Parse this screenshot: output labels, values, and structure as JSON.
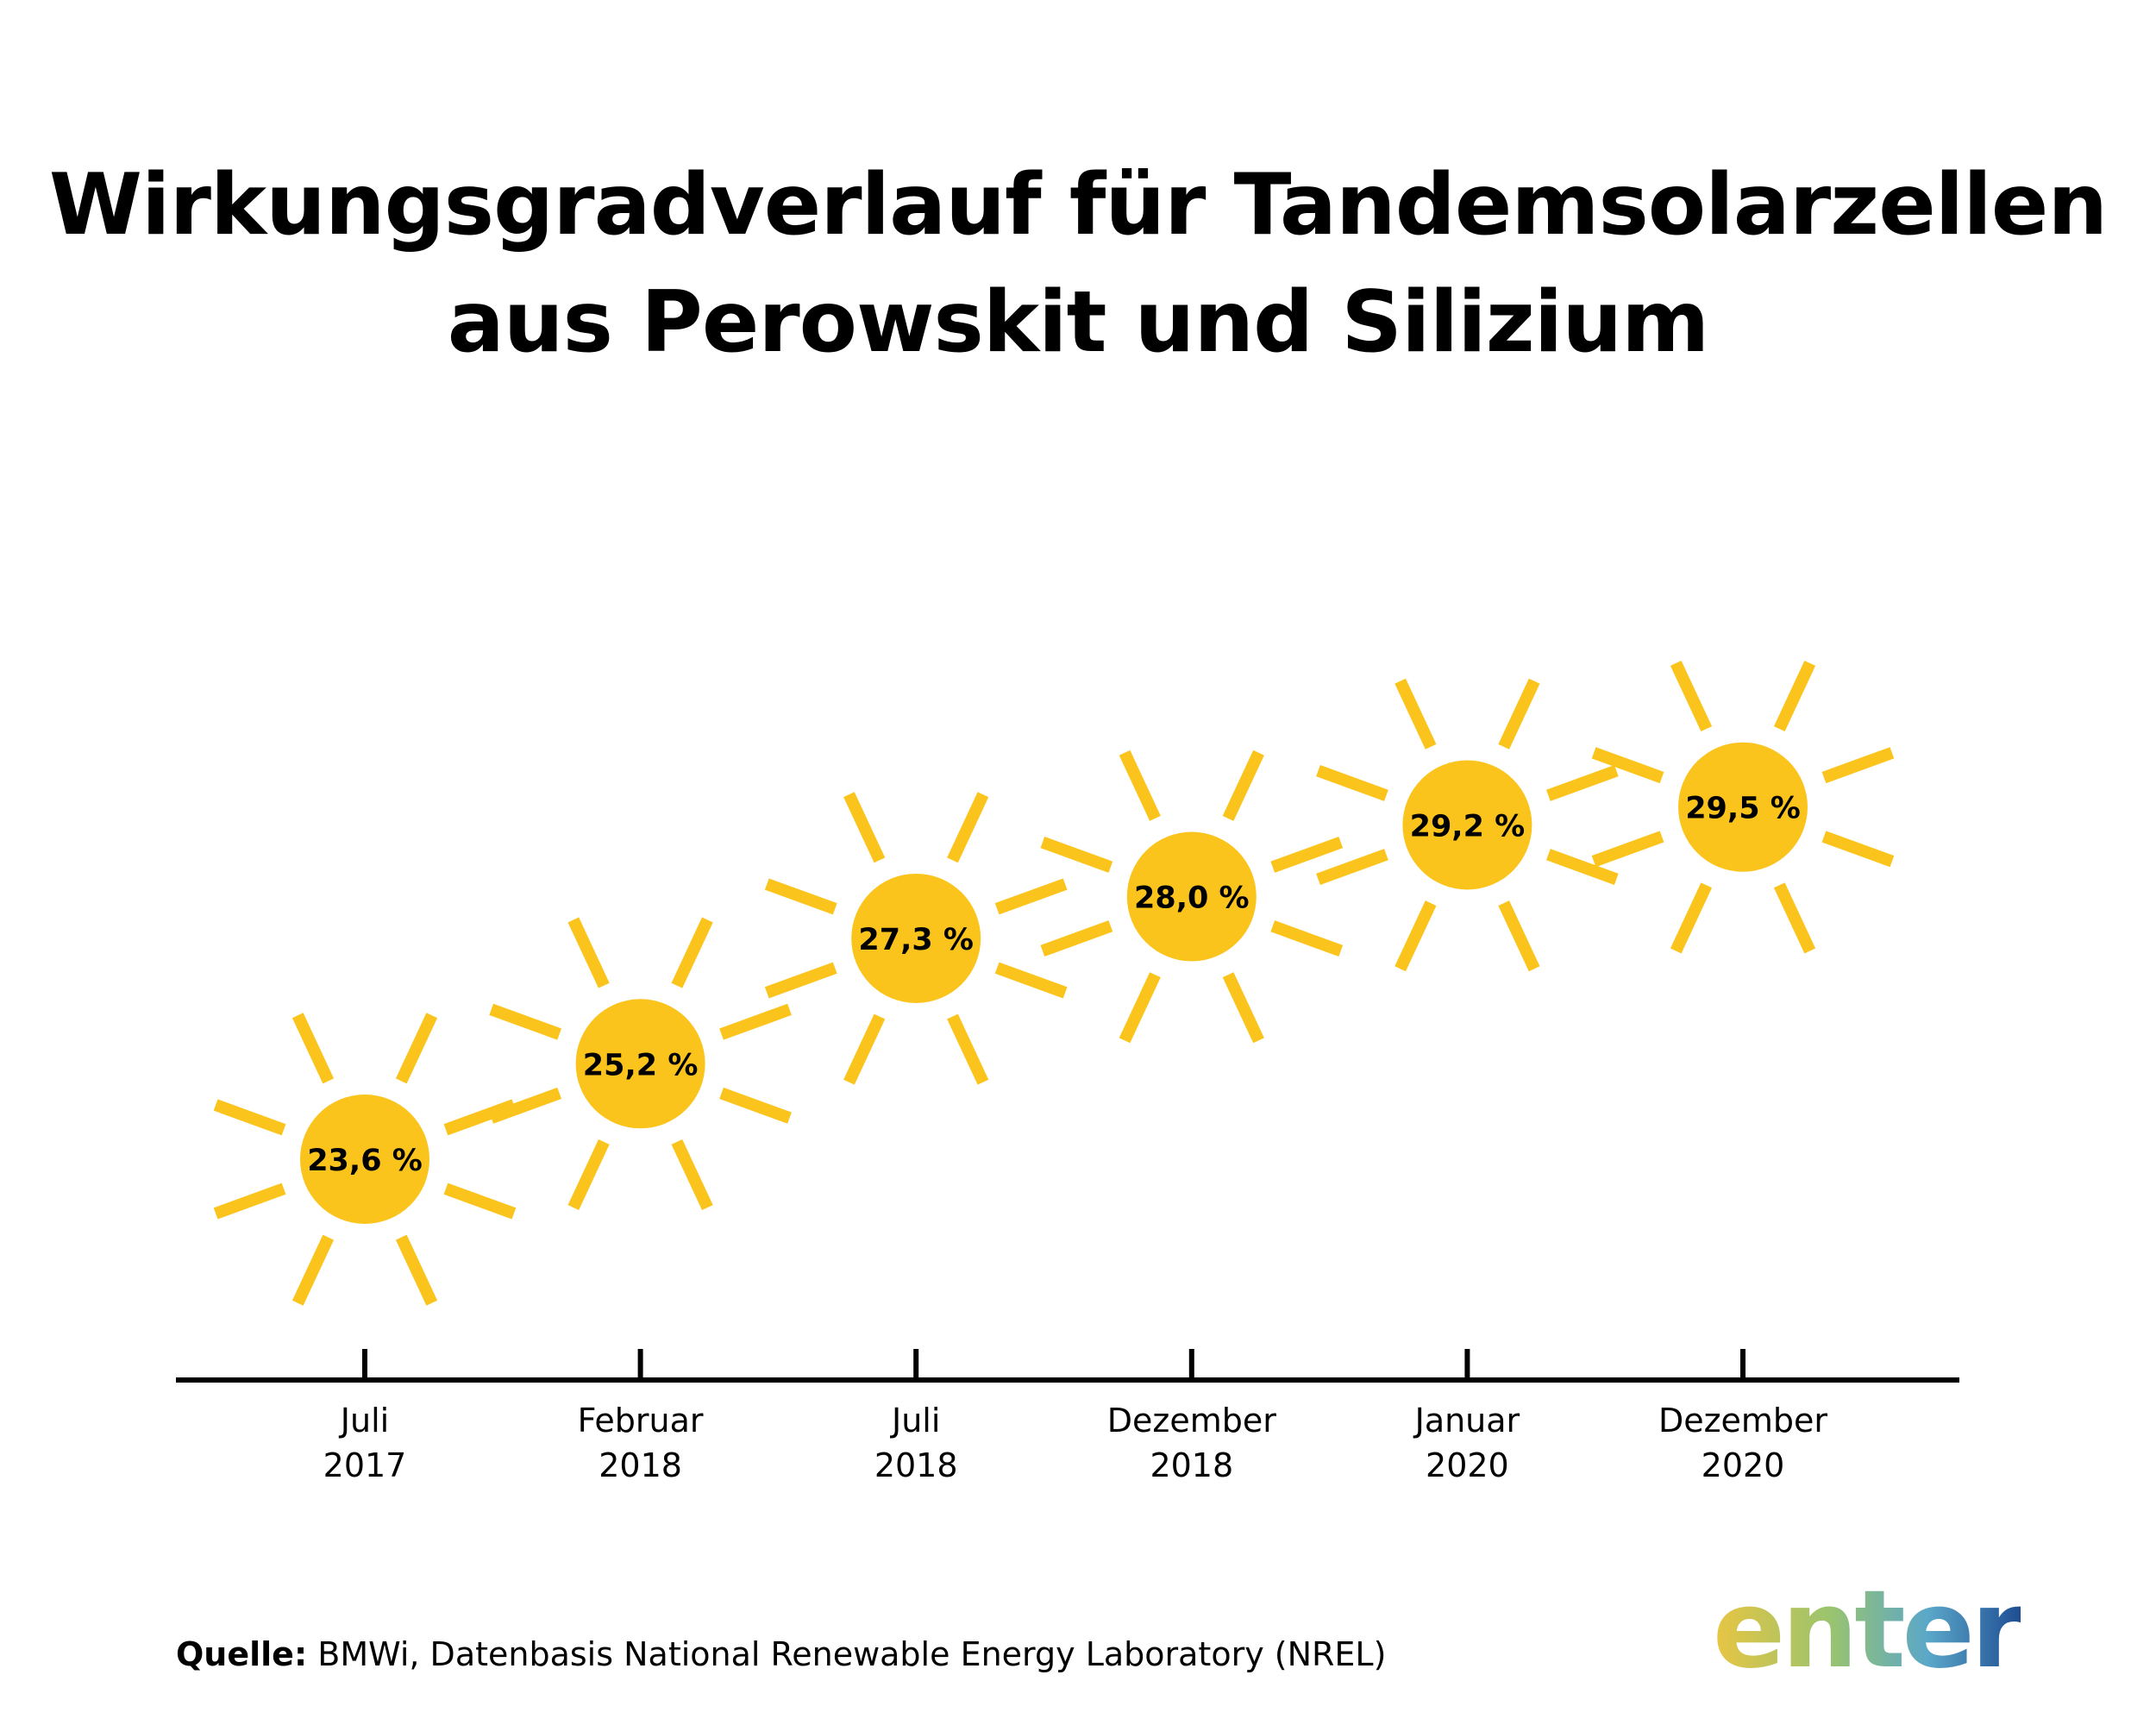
{
  "chart_data": {
    "type": "scatter",
    "title": [
      "Wirkungsgradverlauf für Tandemsolarzellen",
      "aus Perowskit und Silizium"
    ],
    "categories": [
      [
        "Juli",
        "2017"
      ],
      [
        "Februar",
        "2018"
      ],
      [
        "Juli",
        "2018"
      ],
      [
        "Dezember",
        "2018"
      ],
      [
        "Januar",
        "2020"
      ],
      [
        "Dezember",
        "2020"
      ]
    ],
    "values": [
      23.6,
      25.2,
      27.3,
      28.0,
      29.2,
      29.5
    ],
    "labels": [
      "23,6 %",
      "25,2 %",
      "27,3 %",
      "28,0 %",
      "29,2 %",
      "29,5 %"
    ],
    "marker": "sun",
    "marker_color": "#fbc41c",
    "axis_color": "#000000",
    "grid": false
  },
  "source": {
    "label": "Quelle:",
    "text": "BMWi, Datenbasis National Renewable Energy Laboratory (NREL)"
  },
  "logo": {
    "text": "enter"
  }
}
